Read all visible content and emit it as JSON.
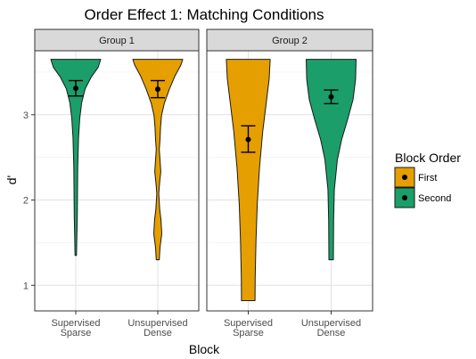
{
  "chart_data": {
    "type": "violin",
    "title": "Order Effect 1: Matching Conditions",
    "xlabel": "Block",
    "ylabel": "d'",
    "ylim": [
      0.7,
      3.75
    ],
    "yticks": [
      "1",
      "2",
      "3"
    ],
    "grid": true,
    "legend_position": "right",
    "legend": {
      "title": "Block Order",
      "entries": [
        {
          "label": "First",
          "color": "#E69F00"
        },
        {
          "label": "Second",
          "color": "#1B9E6A"
        }
      ]
    },
    "panels": [
      {
        "name": "Group 1",
        "categories": [
          {
            "lines": [
              "Supervised",
              "Sparse"
            ]
          },
          {
            "lines": [
              "Unsupervised",
              "Dense"
            ]
          }
        ],
        "violins": [
          {
            "category": 0,
            "order": "Second",
            "min": 1.35,
            "max": 3.65,
            "mean": 3.31,
            "ci": [
              3.22,
              3.4
            ]
          },
          {
            "category": 1,
            "order": "First",
            "min": 1.3,
            "max": 3.65,
            "mean": 3.3,
            "ci": [
              3.2,
              3.4
            ]
          }
        ]
      },
      {
        "name": "Group 2",
        "categories": [
          {
            "lines": [
              "Supervised",
              "Sparse"
            ]
          },
          {
            "lines": [
              "Unsupervised",
              "Dense"
            ]
          }
        ],
        "violins": [
          {
            "category": 0,
            "order": "First",
            "min": 0.82,
            "max": 3.65,
            "mean": 2.71,
            "ci": [
              2.56,
              2.87
            ]
          },
          {
            "category": 1,
            "order": "Second",
            "min": 1.3,
            "max": 3.65,
            "mean": 3.21,
            "ci": [
              3.13,
              3.29
            ]
          }
        ]
      }
    ]
  }
}
